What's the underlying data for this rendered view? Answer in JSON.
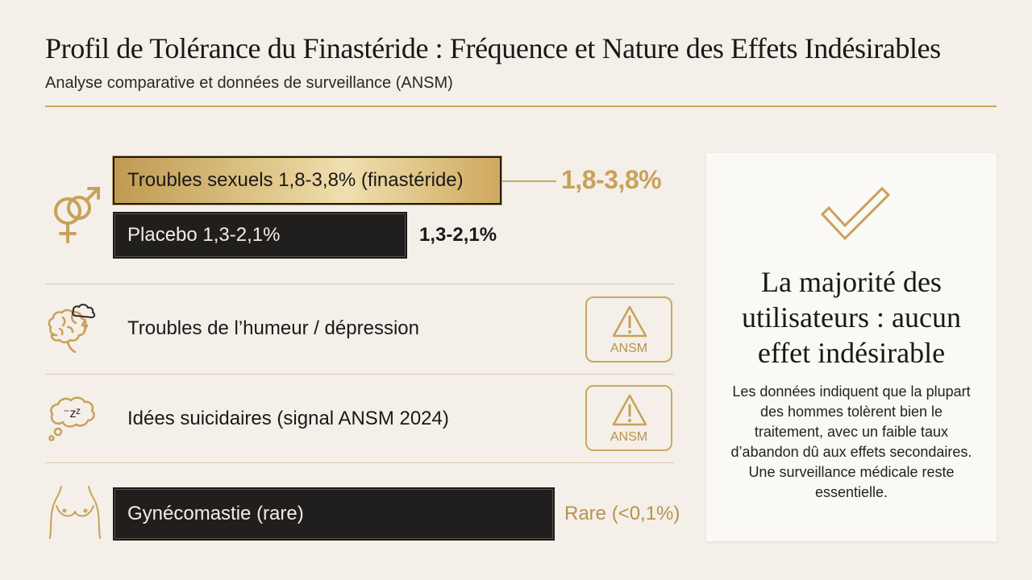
{
  "header": {
    "title": "Profil de Tolérance du Finastéride : Fréquence et Nature des Effets Indésirables",
    "subtitle": "Analyse comparative et données de surveillance (ANSM)"
  },
  "rows": {
    "sexual": {
      "icon": "gender-symbols-icon",
      "finasteride_label": "Troubles sexuels 1,8-3,8% (finastéride)",
      "finasteride_value": "1,8-3,8%",
      "placebo_label": "Placebo 1,3-2,1%",
      "placebo_value": "1,3-2,1%"
    },
    "mood": {
      "icon": "brain-storm-icon",
      "label": "Troubles de l’humeur / dépression",
      "badge": "ANSM"
    },
    "suicidal": {
      "icon": "thought-bubble-icon",
      "label": "Idées suicidaires (signal ANSM 2024)",
      "badge": "ANSM"
    },
    "gynecomastia": {
      "icon": "chest-icon",
      "label": "Gynécomastie (rare)",
      "value": "Rare (<0,1%)"
    }
  },
  "panel": {
    "icon": "checkmark-icon",
    "heading": "La majorité des utilisateurs : aucun effet indésirable",
    "body": "Les données indiquent que la plupart des hommes tolèrent bien le traitement, avec un faible taux d’abandon dû aux effets secondaires. Une surveillance médicale reste essentielle."
  },
  "colors": {
    "accent_gold": "#c8a862",
    "dark_bar": "#211f1d",
    "background": "#f4efe8"
  }
}
